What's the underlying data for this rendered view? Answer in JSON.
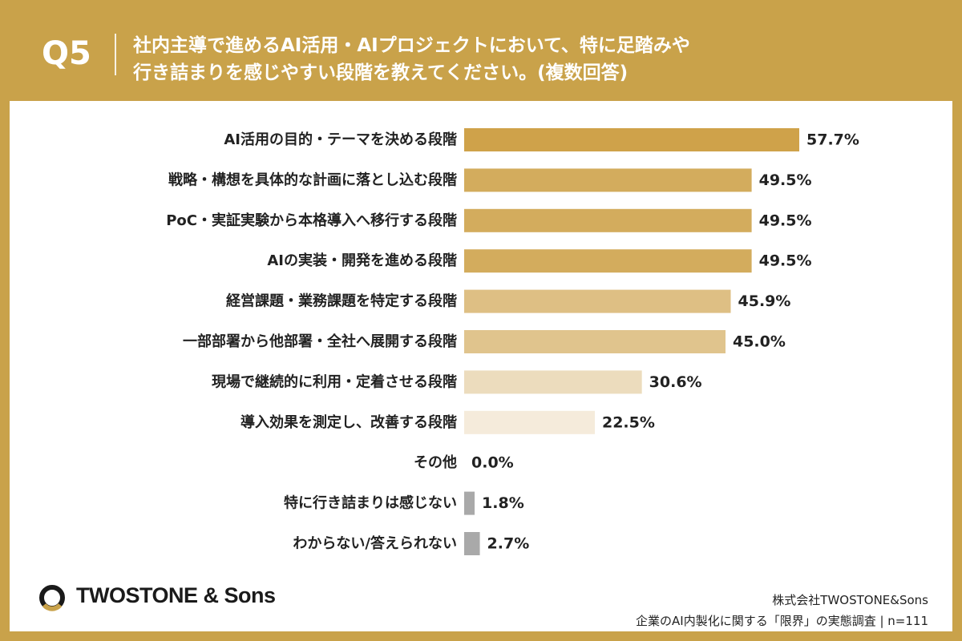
{
  "header": {
    "question_number": "Q5",
    "title_line1": "社内主導で進めるAI活用・AIプロジェクトにおいて、特に足踏みや",
    "title_line2": "行き詰まりを感じやすい段階を教えてください。(複数回答)"
  },
  "footer": {
    "logo_text": "TWOSTONE & Sons",
    "company": "株式会社TWOSTONE&Sons",
    "survey": "企業のAI内製化に関する「限界」の実態調査 | n=111"
  },
  "colors": {
    "background": "#c9a24a",
    "header_text": "#ffffff"
  },
  "chart_data": {
    "type": "bar",
    "orientation": "horizontal",
    "unit": "%",
    "xlim": [
      0,
      57.7
    ],
    "categories": [
      "AI活用の目的・テーマを決める段階",
      "戦略・構想を具体的な計画に落とし込む段階",
      "PoC・実証実験から本格導入へ移行する段階",
      "AIの実装・開発を進める段階",
      "経営課題・業務課題を特定する段階",
      "一部部署から他部署・全社へ展開する段階",
      "現場で継続的に利用・定着させる段階",
      "導入効果を測定し、改善する段階",
      "その他",
      "特に行き詰まりは感じない",
      "わからない/答えられない"
    ],
    "values": [
      57.7,
      49.5,
      49.5,
      49.5,
      45.9,
      45.0,
      30.6,
      22.5,
      0.0,
      1.8,
      2.7
    ],
    "value_labels": [
      "57.7%",
      "49.5%",
      "49.5%",
      "49.5%",
      "45.9%",
      "45.0%",
      "30.6%",
      "22.5%",
      "0.0%",
      "1.8%",
      "2.7%"
    ],
    "bar_colors": [
      "#cfa24a",
      "#d3ac5d",
      "#d3ac5d",
      "#d3ac5d",
      "#deBf84",
      "#e0c48d",
      "#ecdcbd",
      "#f5ebdb",
      "#f5ebdb",
      "#a9a9a9",
      "#a9a9a9"
    ]
  }
}
